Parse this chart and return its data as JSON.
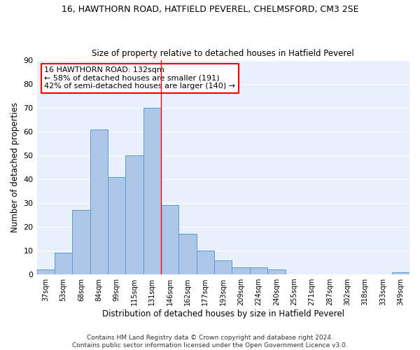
{
  "title1": "16, HAWTHORN ROAD, HATFIELD PEVEREL, CHELMSFORD, CM3 2SE",
  "title2": "Size of property relative to detached houses in Hatfield Peverel",
  "xlabel": "Distribution of detached houses by size in Hatfield Peverel",
  "ylabel": "Number of detached properties",
  "bin_labels": [
    "37sqm",
    "53sqm",
    "68sqm",
    "84sqm",
    "99sqm",
    "115sqm",
    "131sqm",
    "146sqm",
    "162sqm",
    "177sqm",
    "193sqm",
    "209sqm",
    "224sqm",
    "240sqm",
    "255sqm",
    "271sqm",
    "287sqm",
    "302sqm",
    "318sqm",
    "333sqm",
    "349sqm"
  ],
  "bar_values": [
    2,
    9,
    27,
    61,
    41,
    50,
    70,
    29,
    17,
    10,
    6,
    3,
    3,
    2,
    0,
    0,
    0,
    0,
    0,
    0,
    1
  ],
  "bar_color": "#aec6e8",
  "bar_edge_color": "#5b9bd5",
  "vline_color": "red",
  "vline_label": "131sqm",
  "ylim": [
    0,
    90
  ],
  "yticks": [
    0,
    10,
    20,
    30,
    40,
    50,
    60,
    70,
    80,
    90
  ],
  "annotation_text": "16 HAWTHORN ROAD: 132sqm\n← 58% of detached houses are smaller (191)\n42% of semi-detached houses are larger (140) →",
  "annotation_box_color": "white",
  "annotation_box_edge": "red",
  "background_color": "#e8f0fb",
  "grid_color": "white",
  "footer": "Contains HM Land Registry data © Crown copyright and database right 2024.\nContains public sector information licensed under the Open Government Licence v3.0."
}
